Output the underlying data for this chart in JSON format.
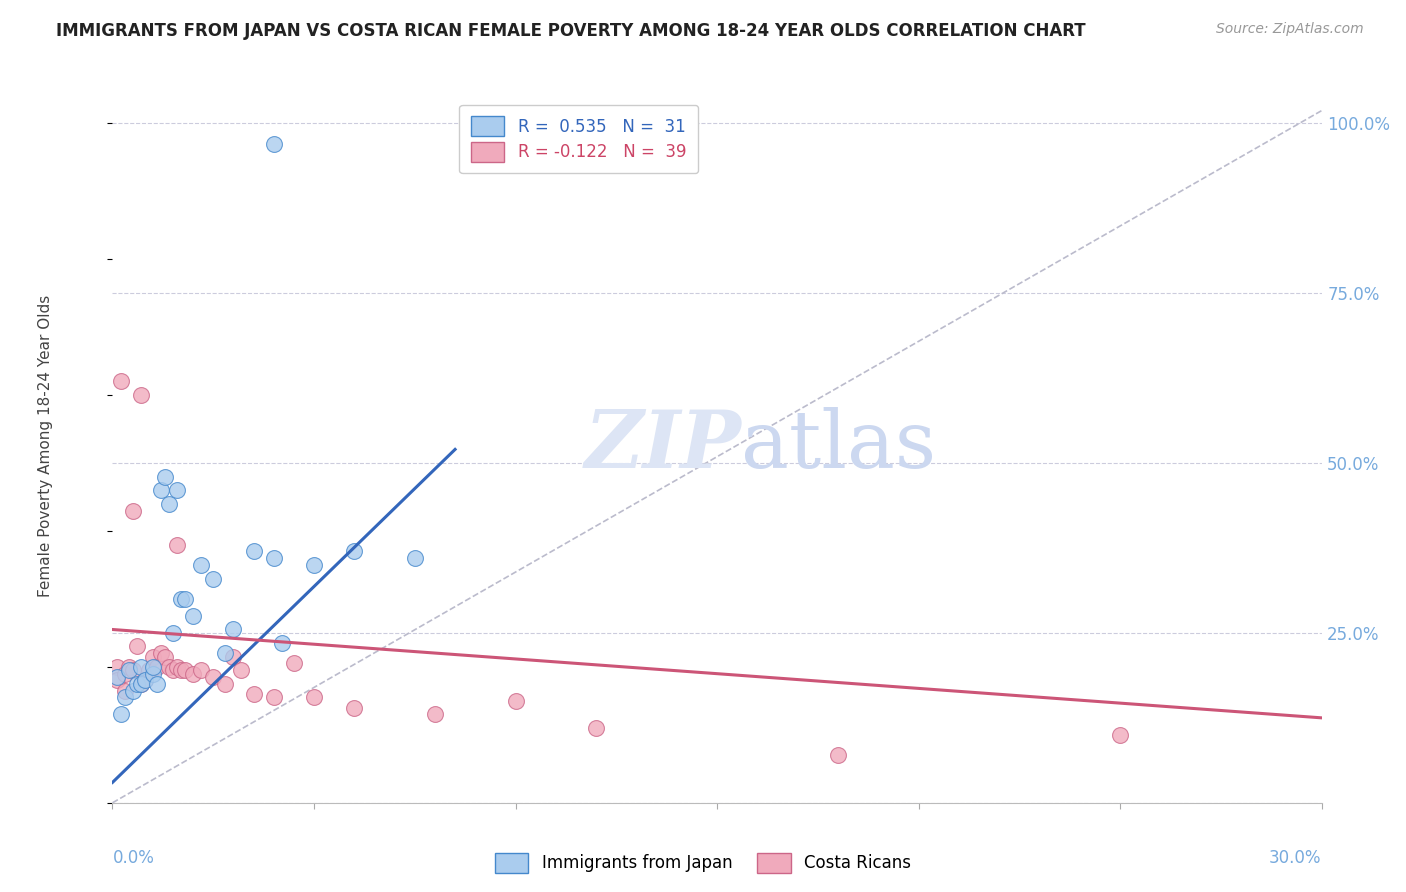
{
  "title": "IMMIGRANTS FROM JAPAN VS COSTA RICAN FEMALE POVERTY AMONG 18-24 YEAR OLDS CORRELATION CHART",
  "source": "Source: ZipAtlas.com",
  "ylabel": "Female Poverty Among 18-24 Year Olds",
  "xmin": 0.0,
  "xmax": 0.3,
  "ymin": 0.0,
  "ymax": 1.05,
  "ytick_vals": [
    0.0,
    0.25,
    0.5,
    0.75,
    1.0
  ],
  "ytick_labels": [
    "",
    "25.0%",
    "50.0%",
    "75.0%",
    "100.0%"
  ],
  "watermark_zip": "ZIP",
  "watermark_atlas": "atlas",
  "blue_color": "#aaccee",
  "pink_color": "#f0aabc",
  "blue_edge": "#4488cc",
  "pink_edge": "#cc6688",
  "blue_line_color": "#3366bb",
  "pink_line_color": "#cc5577",
  "ref_line_color": "#bbbbcc",
  "grid_color": "#ccccdd",
  "axis_color": "#77aadd",
  "title_color": "#222222",
  "source_color": "#999999",
  "ylabel_color": "#444444",
  "blue_x": [
    0.001,
    0.002,
    0.003,
    0.004,
    0.005,
    0.006,
    0.007,
    0.007,
    0.008,
    0.01,
    0.01,
    0.011,
    0.012,
    0.013,
    0.014,
    0.015,
    0.016,
    0.017,
    0.018,
    0.02,
    0.022,
    0.025,
    0.028,
    0.03,
    0.035,
    0.04,
    0.042,
    0.05,
    0.06,
    0.075,
    0.04
  ],
  "blue_y": [
    0.185,
    0.13,
    0.155,
    0.195,
    0.165,
    0.175,
    0.2,
    0.175,
    0.18,
    0.19,
    0.2,
    0.175,
    0.46,
    0.48,
    0.44,
    0.25,
    0.46,
    0.3,
    0.3,
    0.275,
    0.35,
    0.33,
    0.22,
    0.255,
    0.37,
    0.36,
    0.235,
    0.35,
    0.37,
    0.36,
    0.97
  ],
  "pink_x": [
    0.001,
    0.001,
    0.002,
    0.003,
    0.003,
    0.004,
    0.005,
    0.005,
    0.006,
    0.007,
    0.007,
    0.008,
    0.009,
    0.01,
    0.011,
    0.012,
    0.013,
    0.014,
    0.015,
    0.016,
    0.016,
    0.017,
    0.018,
    0.02,
    0.022,
    0.025,
    0.028,
    0.03,
    0.032,
    0.035,
    0.04,
    0.045,
    0.05,
    0.06,
    0.08,
    0.1,
    0.12,
    0.18,
    0.25
  ],
  "pink_y": [
    0.2,
    0.18,
    0.62,
    0.19,
    0.165,
    0.2,
    0.43,
    0.195,
    0.23,
    0.6,
    0.175,
    0.18,
    0.195,
    0.215,
    0.2,
    0.22,
    0.215,
    0.2,
    0.195,
    0.38,
    0.2,
    0.195,
    0.195,
    0.19,
    0.195,
    0.185,
    0.175,
    0.215,
    0.195,
    0.16,
    0.155,
    0.205,
    0.155,
    0.14,
    0.13,
    0.15,
    0.11,
    0.07,
    0.1
  ],
  "blue_trend_x0": 0.0,
  "blue_trend_x1": 0.085,
  "blue_trend_y0": 0.03,
  "blue_trend_y1": 0.52,
  "pink_trend_x0": 0.0,
  "pink_trend_x1": 0.3,
  "pink_trend_y0": 0.255,
  "pink_trend_y1": 0.125
}
